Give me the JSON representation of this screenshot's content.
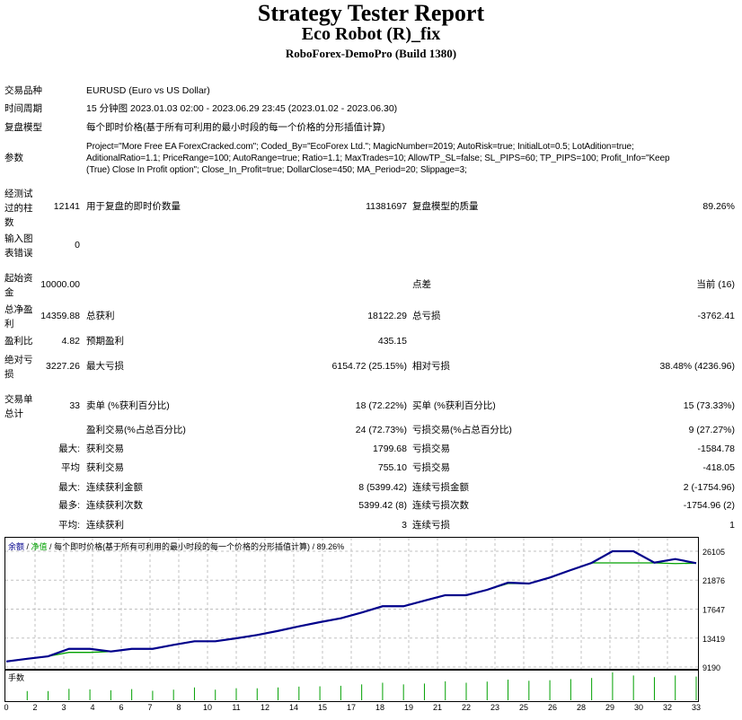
{
  "header": {
    "title": "Strategy Tester Report",
    "robot": "Eco Robot (R)_fix",
    "server": "RoboForex-DemoPro (Build 1380)"
  },
  "info": {
    "symbol_label": "交易品种",
    "symbol": "EURUSD (Euro vs US Dollar)",
    "period_label": "时间周期",
    "period": "15 分钟图 2023.01.03 02:00 - 2023.06.29 23:45 (2023.01.02 - 2023.06.30)",
    "model_label": "复盘模型",
    "model": "每个即时价格(基于所有可利用的最小时段的每一个价格的分形插值计算)",
    "params_label": "参数",
    "params": [
      "Project=\"More Free EA ForexCracked.com\"; Coded_By=\"EcoForex Ltd.\"; MagicNumber=2019; AutoRisk=true; InitialLot=0.5; LotAdition=true;",
      "AditionalRatio=1.1; PriceRange=100; AutoRange=true; Ratio=1.1; MaxTrades=10; AllowTP_SL=false; SL_PIPS=60; TP_PIPS=100; Profit_Info=\"Keep",
      "(True) Close In Profit option\"; Close_In_Profit=true; DollarClose=450; MA_Period=20; Slippage=3;"
    ]
  },
  "stats": {
    "bars_label": "经测试过的柱数",
    "bars": "12141",
    "ticks_label": "用于复盘的即时价数量",
    "ticks": "11381697",
    "quality_label": "复盘模型的质量",
    "quality": "89.26%",
    "errors_label": "输入图表错误",
    "errors": "0",
    "deposit_label": "起始资金",
    "deposit": "10000.00",
    "spread_label": "点差",
    "spread": "当前 (16)",
    "net_label": "总净盈利",
    "net": "14359.88",
    "gross_profit_label": "总获利",
    "gross_profit": "18122.29",
    "gross_loss_label": "总亏损",
    "gross_loss": "-3762.41",
    "pf_label": "盈利比",
    "pf": "4.82",
    "payoff_label": "预期盈利",
    "payoff": "435.15",
    "abs_dd_label": "绝对亏损",
    "abs_dd": "3227.26",
    "max_dd_label": "最大亏损",
    "max_dd": "6154.72 (25.15%)",
    "rel_dd_label": "相对亏损",
    "rel_dd": "38.48% (4236.96)",
    "trades_label": "交易单总计",
    "trades": "33",
    "short_label": "卖单 (%获利百分比)",
    "short": "18 (72.22%)",
    "long_label": "买单 (%获利百分比)",
    "long": "15 (73.33%)",
    "win_label": "盈利交易(%占总百分比)",
    "win": "24 (72.73%)",
    "loss_label": "亏损交易(%占总百分比)",
    "loss": "9 (27.27%)",
    "largest_label": "最大:",
    "largest_win_label": "获利交易",
    "largest_win": "1799.68",
    "largest_loss_label": "亏损交易",
    "largest_loss": "-1584.78",
    "average_label": "平均",
    "avg_win_label": "获利交易",
    "avg_win": "755.10",
    "avg_loss_label": "亏损交易",
    "avg_loss": "-418.05",
    "max_label": "最大:",
    "max_cons_win_label": "连续获利金额",
    "max_cons_win": "8 (5399.42)",
    "max_cons_loss_label": "连续亏损金额",
    "max_cons_loss": "2 (-1754.96)",
    "most_label": "最多:",
    "most_cons_win_label": "连续获利次数",
    "most_cons_win": "5399.42 (8)",
    "most_cons_loss_label": "连续亏损次数",
    "most_cons_loss": "-1754.96 (2)",
    "avgc_label": "平均:",
    "avg_cons_win_label": "连续获利",
    "avg_cons_win": "3",
    "avg_cons_loss_label": "连续亏损",
    "avg_cons_loss": "1"
  },
  "chart_data": {
    "type": "line",
    "legend": {
      "balance": "余额",
      "sep1": " / ",
      "equity": "净值",
      "sep2": " / ",
      "model": "每个即时价格(基于所有可利用的最小时段的每一个价格的分形插值计算)",
      "sep3": " / ",
      "quality": "89.26%"
    },
    "colors": {
      "balance": "#00008b",
      "equity": "#00a000",
      "volume": "#00a000",
      "grid": "#c0c0c0"
    },
    "ylim": [
      8930,
      28200
    ],
    "yticks": [
      26105,
      21876,
      17647,
      13419,
      9190
    ],
    "xticks": [
      "0",
      "2",
      "3",
      "4",
      "6",
      "7",
      "8",
      "10",
      "11",
      "12",
      "14",
      "15",
      "17",
      "18",
      "19",
      "21",
      "22",
      "23",
      "25",
      "26",
      "28",
      "29",
      "30",
      "32",
      "33"
    ],
    "xlim": [
      0,
      33
    ],
    "grid": true,
    "series": [
      {
        "name": "余额",
        "values": [
          10000,
          10400,
          10760,
          11850,
          11850,
          11460,
          11850,
          11850,
          12430,
          12950,
          12950,
          13385,
          13870,
          14470,
          15130,
          15745,
          16310,
          17150,
          18070,
          18070,
          18890,
          19680,
          19680,
          20465,
          21510,
          21380,
          22260,
          23350,
          24400,
          26105,
          26105,
          24440,
          24960,
          24360
        ]
      },
      {
        "name": "净值",
        "values": [
          10000,
          10400,
          10760,
          11330,
          11330,
          11460,
          11850,
          11850,
          12430,
          12950,
          12950,
          13385,
          13870,
          14470,
          15130,
          15745,
          16310,
          17150,
          18070,
          18070,
          18890,
          19680,
          19680,
          20465,
          21380,
          21380,
          22260,
          23350,
          24400,
          24400,
          24400,
          24400,
          24300,
          24360
        ]
      }
    ],
    "volume_label": "手数",
    "volume_relative": [
      0.33,
      0.33,
      0.41,
      0.39,
      0.36,
      0.4,
      0.34,
      0.38,
      0.46,
      0.38,
      0.43,
      0.43,
      0.46,
      0.49,
      0.5,
      0.52,
      0.57,
      0.63,
      0.57,
      0.6,
      0.68,
      0.63,
      0.67,
      0.74,
      0.7,
      0.72,
      0.76,
      0.8,
      1.0,
      0.89,
      0.83,
      0.89,
      0.85
    ]
  }
}
